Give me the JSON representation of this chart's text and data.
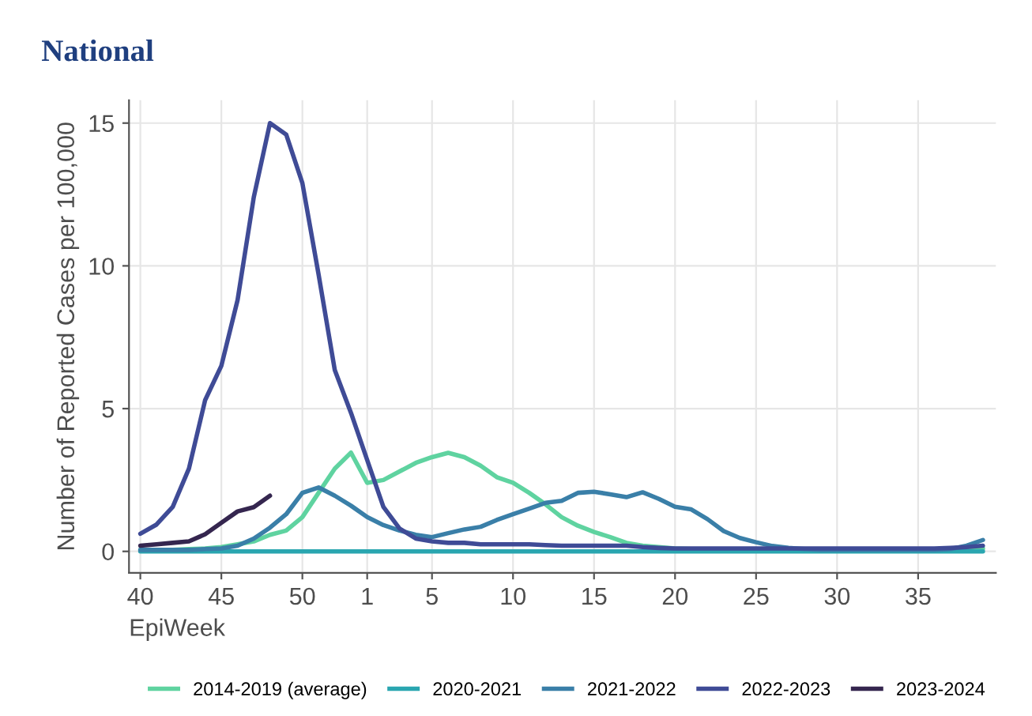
{
  "chart_data": {
    "type": "line",
    "title": "National",
    "xlabel": "EpiWeek",
    "ylabel": "Number of Reported Cases per 100,000",
    "categories": [
      "40",
      null,
      null,
      null,
      null,
      "45",
      null,
      null,
      null,
      null,
      "50",
      null,
      null,
      null,
      "1",
      null,
      null,
      null,
      "5",
      null,
      null,
      null,
      null,
      "10",
      null,
      null,
      null,
      null,
      "15",
      null,
      null,
      null,
      null,
      "20",
      null,
      null,
      null,
      null,
      "25",
      null,
      null,
      null,
      null,
      "30",
      null,
      null,
      null,
      null,
      "35",
      null,
      null,
      null,
      null
    ],
    "series": [
      {
        "name": "2014-2019 (average)",
        "color": "#5fd3a0",
        "values": [
          0.05,
          0.05,
          0.05,
          0.08,
          0.1,
          0.15,
          0.25,
          0.35,
          0.58,
          0.73,
          1.2,
          2.05,
          2.9,
          3.46,
          2.4,
          2.5,
          2.8,
          3.1,
          3.3,
          3.45,
          3.3,
          3.0,
          2.6,
          2.4,
          2.05,
          1.65,
          1.2,
          0.9,
          0.68,
          0.5,
          0.3,
          0.2,
          0.15,
          0.1,
          0.08,
          0.05,
          0.05,
          0.05,
          0.05,
          0.05,
          0.05,
          0.05,
          0.05,
          0.05,
          0.05,
          0.05,
          0.05,
          0.05,
          0.05,
          0.05,
          0.05,
          0.08,
          0.1
        ]
      },
      {
        "name": "2020-2021",
        "color": "#2aa6b0",
        "values": [
          0,
          0,
          0,
          0,
          0,
          0,
          0,
          0,
          0,
          0,
          0,
          0,
          0,
          0,
          0,
          0,
          0,
          0,
          0,
          0,
          0,
          0,
          0,
          0,
          0,
          0,
          0,
          0,
          0,
          0,
          0,
          0,
          0,
          0,
          0,
          0,
          0,
          0,
          0,
          0,
          0,
          0,
          0,
          0,
          0,
          0,
          0,
          0,
          0,
          0,
          0,
          0,
          0
        ]
      },
      {
        "name": "2021-2022",
        "color": "#3a7fa8",
        "values": [
          0.05,
          0.05,
          0.05,
          0.05,
          0.08,
          0.1,
          0.2,
          0.45,
          0.83,
          1.3,
          2.05,
          2.24,
          1.95,
          1.6,
          1.2,
          0.92,
          0.73,
          0.58,
          0.5,
          0.64,
          0.77,
          0.86,
          1.1,
          1.3,
          1.5,
          1.7,
          1.77,
          2.05,
          2.09,
          2.0,
          1.9,
          2.07,
          1.84,
          1.56,
          1.47,
          1.13,
          0.71,
          0.47,
          0.32,
          0.19,
          0.12,
          0.08,
          0.05,
          0.05,
          0.05,
          0.05,
          0.05,
          0.05,
          0.05,
          0.05,
          0.08,
          0.2,
          0.4
        ]
      },
      {
        "name": "2022-2023",
        "color": "#3f4b96",
        "values": [
          0.62,
          0.94,
          1.56,
          2.9,
          5.3,
          6.5,
          8.8,
          12.4,
          15.0,
          14.6,
          12.9,
          9.7,
          6.35,
          4.85,
          3.2,
          1.56,
          0.8,
          0.45,
          0.35,
          0.3,
          0.3,
          0.25,
          0.25,
          0.25,
          0.25,
          0.22,
          0.2,
          0.2,
          0.2,
          0.2,
          0.2,
          0.15,
          0.12,
          0.1,
          0.1,
          0.1,
          0.1,
          0.1,
          0.1,
          0.1,
          0.1,
          0.1,
          0.1,
          0.1,
          0.1,
          0.1,
          0.1,
          0.1,
          0.1,
          0.1,
          0.12,
          0.15,
          0.2
        ]
      },
      {
        "name": "2023-2024",
        "color": "#35264f",
        "values": [
          0.2,
          0.25,
          0.3,
          0.35,
          0.6,
          1.0,
          1.4,
          1.55,
          1.95,
          null,
          null,
          null,
          null,
          null,
          null,
          null,
          null,
          null,
          null,
          null,
          null,
          null,
          null,
          null,
          null,
          null,
          null,
          null,
          null,
          null,
          null,
          null,
          null,
          null,
          null,
          null,
          null,
          null,
          null,
          null,
          null,
          null,
          null,
          null,
          null,
          null,
          null,
          null,
          null,
          null,
          null,
          null,
          null
        ]
      }
    ],
    "ylim": [
      -0.75,
      15.8
    ],
    "yticks": [
      0,
      5,
      10,
      15
    ],
    "grid": true,
    "legend": "bottom",
    "marker": "none",
    "line_style": "solid"
  }
}
